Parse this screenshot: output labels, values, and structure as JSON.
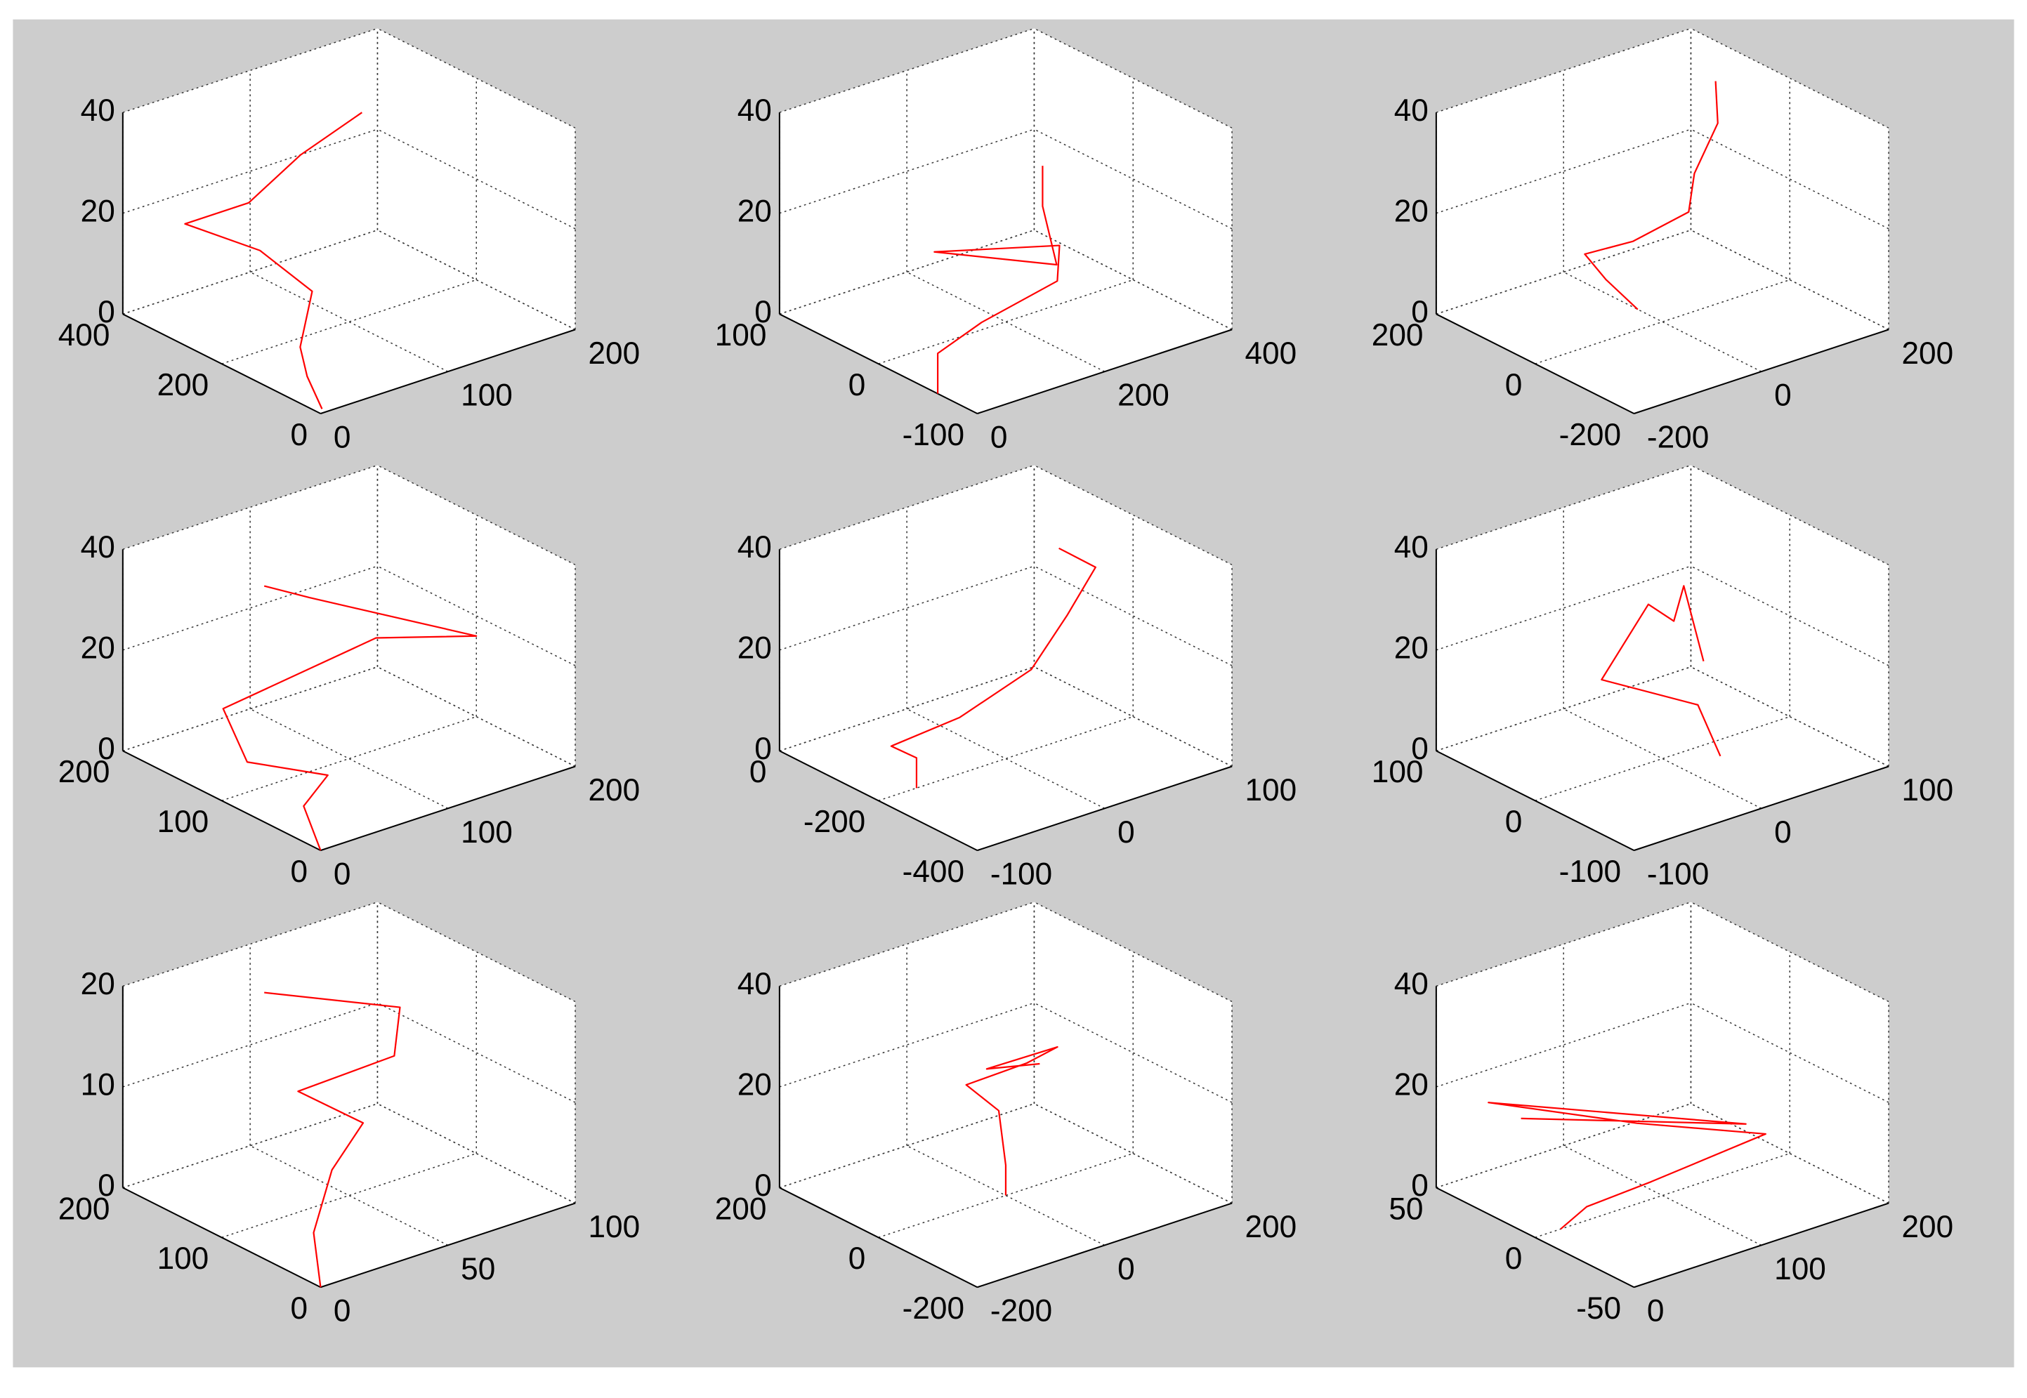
{
  "chart_data": [
    {
      "type": "line3d",
      "color": "#ff0000",
      "grid": true,
      "xlim": [
        0,
        200
      ],
      "ylim": [
        0,
        400
      ],
      "zlim": [
        0,
        40
      ],
      "xticks": [
        0,
        100,
        200
      ],
      "yticks": [
        0,
        200,
        400
      ],
      "zticks": [
        0,
        20,
        40
      ],
      "x": [
        5,
        5,
        15,
        40,
        30,
        10,
        60,
        120,
        180
      ],
      "y": [
        10,
        40,
        80,
        120,
        200,
        300,
        300,
        350,
        380
      ],
      "z": [
        0,
        5,
        8,
        15,
        20,
        22,
        22,
        24,
        26
      ]
    },
    {
      "type": "line3d",
      "color": "#ff0000",
      "grid": true,
      "xlim": [
        0,
        400
      ],
      "ylim": [
        -100,
        100
      ],
      "zlim": [
        0,
        40
      ],
      "xticks": [
        0,
        200,
        400
      ],
      "yticks": [
        -100,
        0,
        100
      ],
      "zticks": [
        0,
        20,
        40
      ],
      "x": [
        0,
        0,
        100,
        250,
        300,
        150,
        280,
        320,
        320
      ],
      "y": [
        -60,
        -60,
        -40,
        -20,
        10,
        40,
        0,
        40,
        40
      ],
      "z": [
        0,
        8,
        8,
        8,
        10,
        12,
        8,
        14,
        22
      ]
    },
    {
      "type": "line3d",
      "color": "#ff0000",
      "grid": true,
      "xlim": [
        -200,
        200
      ],
      "ylim": [
        -200,
        200
      ],
      "zlim": [
        0,
        40
      ],
      "xticks": [
        -200,
        0,
        200
      ],
      "yticks": [
        -200,
        0,
        200
      ],
      "zticks": [
        0,
        20,
        40
      ],
      "x": [
        0,
        -50,
        -60,
        0,
        80,
        120,
        180,
        200
      ],
      "y": [
        50,
        50,
        80,
        60,
        50,
        90,
        120,
        150
      ],
      "z": [
        0,
        8,
        12,
        13,
        16,
        20,
        26,
        32
      ]
    },
    {
      "type": "line3d",
      "color": "#ff0000",
      "grid": true,
      "xlim": [
        0,
        200
      ],
      "ylim": [
        0,
        200
      ],
      "zlim": [
        0,
        40
      ],
      "xticks": [
        0,
        100,
        200
      ],
      "yticks": [
        0,
        100,
        200
      ],
      "zticks": [
        0,
        20,
        40
      ],
      "x": [
        0,
        10,
        60,
        20,
        40,
        160,
        200,
        100,
        80
      ],
      "y": [
        0,
        30,
        70,
        100,
        150,
        150,
        100,
        140,
        160
      ],
      "z": [
        0,
        5,
        3,
        6,
        10,
        14,
        16,
        28,
        30
      ]
    },
    {
      "type": "line3d",
      "color": "#ff0000",
      "grid": true,
      "xlim": [
        -100,
        100
      ],
      "ylim": [
        -400,
        0
      ],
      "zlim": [
        0,
        40
      ],
      "xticks": [
        -100,
        0,
        100
      ],
      "yticks": [
        -400,
        -200,
        0
      ],
      "zticks": [
        0,
        20,
        40
      ],
      "x": [
        -70,
        -70,
        -90,
        -40,
        20,
        60,
        90,
        100
      ],
      "y": [
        -200,
        -200,
        -200,
        -210,
        -200,
        -170,
        -150,
        -50
      ],
      "z": [
        0,
        6,
        10,
        12,
        16,
        22,
        28,
        26
      ]
    },
    {
      "type": "line3d",
      "color": "#ff0000",
      "grid": true,
      "xlim": [
        -100,
        100
      ],
      "ylim": [
        -100,
        100
      ],
      "zlim": [
        0,
        40
      ],
      "xticks": [
        -100,
        0,
        100
      ],
      "yticks": [
        -100,
        0,
        100
      ],
      "zticks": [
        0,
        20,
        40
      ],
      "x": [
        30,
        20,
        -40,
        20,
        40,
        40,
        40
      ],
      "y": [
        -20,
        -10,
        10,
        40,
        40,
        30,
        10
      ],
      "z": [
        0,
        10,
        18,
        25,
        20,
        28,
        15
      ]
    },
    {
      "type": "line3d",
      "color": "#ff0000",
      "grid": true,
      "xlim": [
        0,
        100
      ],
      "ylim": [
        0,
        200
      ],
      "zlim": [
        0,
        20
      ],
      "xticks": [
        0,
        50,
        100
      ],
      "yticks": [
        0,
        100,
        200
      ],
      "zticks": [
        0,
        10,
        20
      ],
      "x": [
        0,
        5,
        20,
        40,
        30,
        60,
        70,
        40
      ],
      "y": [
        0,
        20,
        40,
        60,
        100,
        80,
        100,
        160
      ],
      "z": [
        0,
        4,
        8,
        10,
        12,
        14,
        17,
        18
      ]
    },
    {
      "type": "line3d",
      "color": "#ff0000",
      "grid": true,
      "xlim": [
        -200,
        200
      ],
      "ylim": [
        -200,
        200
      ],
      "zlim": [
        0,
        40
      ],
      "xticks": [
        -200,
        0,
        200
      ],
      "yticks": [
        -200,
        0,
        200
      ],
      "zticks": [
        0,
        20,
        40
      ],
      "x": [
        0,
        0,
        20,
        0,
        80,
        120,
        40,
        100
      ],
      "y": [
        0,
        0,
        40,
        80,
        60,
        50,
        90,
        60
      ],
      "z": [
        0,
        6,
        14,
        18,
        20,
        22,
        19,
        19
      ]
    },
    {
      "type": "line3d",
      "color": "#ff0000",
      "grid": true,
      "xlim": [
        0,
        200
      ],
      "ylim": [
        -50,
        50
      ],
      "zlim": [
        0,
        40
      ],
      "xticks": [
        0,
        100,
        200
      ],
      "yticks": [
        -50,
        0,
        50
      ],
      "zticks": [
        0,
        20,
        40
      ],
      "x": [
        20,
        25,
        60,
        150,
        80,
        10,
        150,
        20
      ],
      "y": [
        0,
        -10,
        -20,
        -20,
        0,
        30,
        -10,
        20
      ],
      "z": [
        0,
        6,
        10,
        12,
        16,
        20,
        12,
        18
      ]
    }
  ]
}
